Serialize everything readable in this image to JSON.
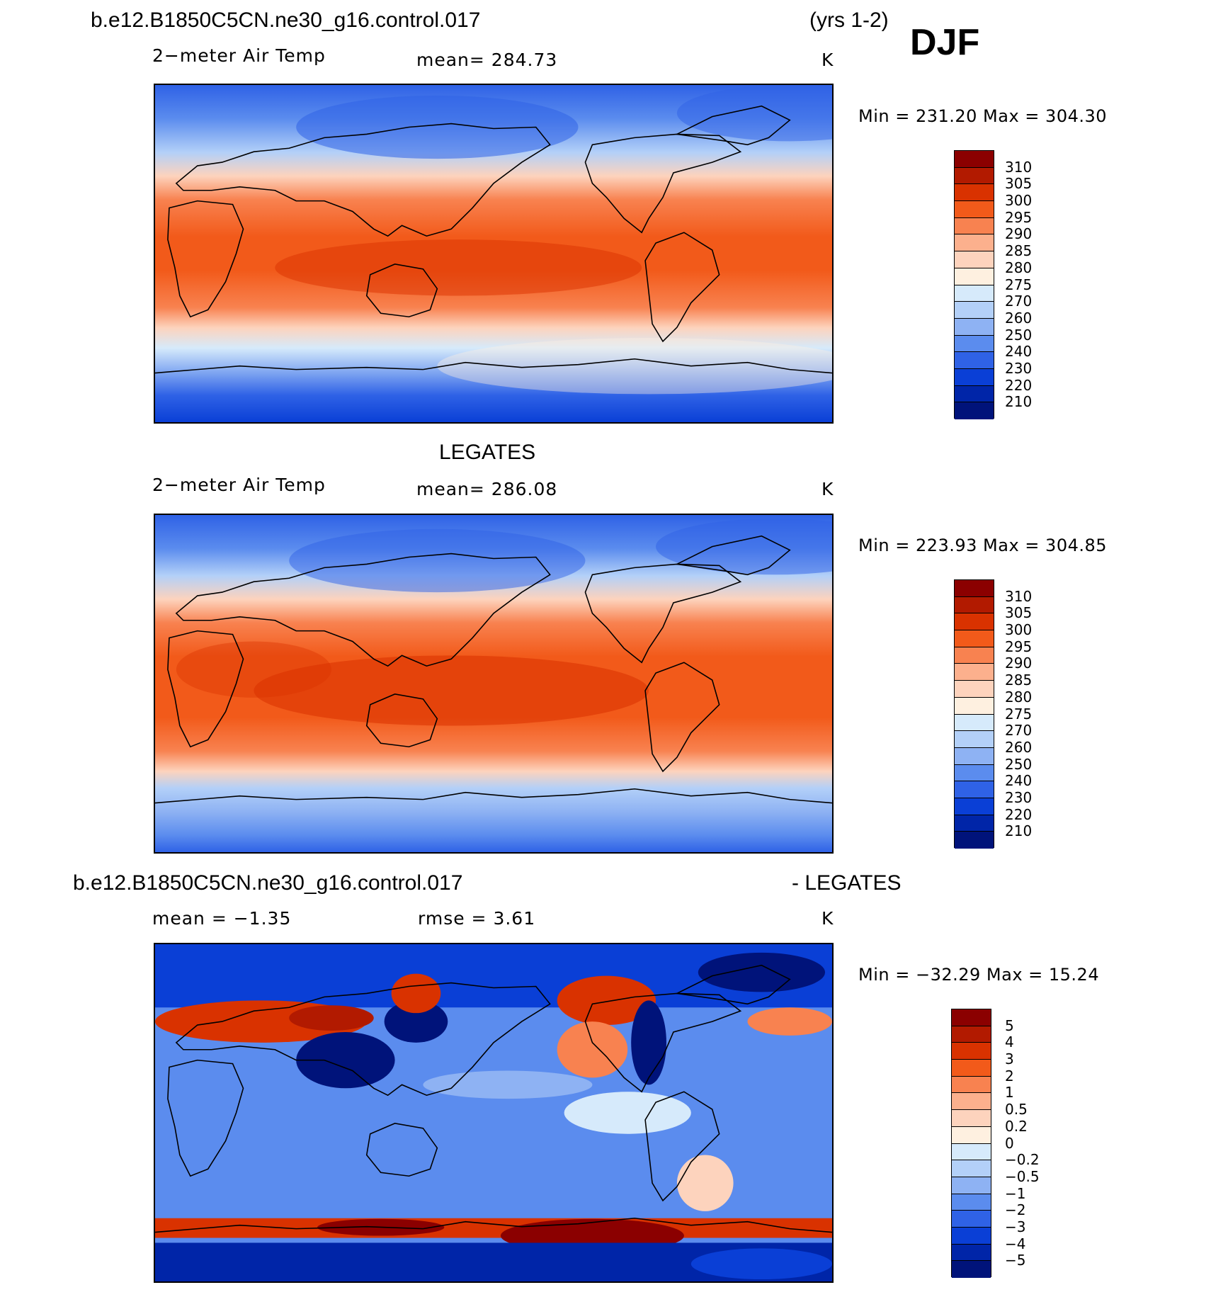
{
  "header": {
    "case_name": "b.e12.B1850C5CN.ne30_g16.control.017",
    "years": "(yrs 1-2)",
    "season": "DJF"
  },
  "panels": [
    {
      "id": "model",
      "variable": "2−meter Air Temp",
      "mean_text": "mean=  284.73",
      "units": "K",
      "minmax_text": "Min  =  231.20  Max  =  304.30",
      "colorbar": {
        "labels": [
          "310",
          "305",
          "300",
          "295",
          "290",
          "285",
          "280",
          "275",
          "270",
          "260",
          "250",
          "240",
          "230",
          "220",
          "210"
        ],
        "colors": [
          "#8b0000",
          "#b21a00",
          "#d93200",
          "#f25a1a",
          "#f88250",
          "#fcb08d",
          "#fdd3bd",
          "#fef0e0",
          "#d6eafb",
          "#b3d0f8",
          "#8eb2f3",
          "#5b8cee",
          "#2f62e6",
          "#0a3fd6",
          "#0025a8",
          "#00137a"
        ]
      }
    },
    {
      "id": "obs",
      "dataset": "LEGATES",
      "variable": "2−meter Air Temp",
      "mean_text": "mean=  286.08",
      "units": "K",
      "minmax_text": "Min  =  223.93  Max  =  304.85",
      "colorbar": {
        "labels": [
          "310",
          "305",
          "300",
          "295",
          "290",
          "285",
          "280",
          "275",
          "270",
          "260",
          "250",
          "240",
          "230",
          "220",
          "210"
        ],
        "colors": [
          "#8b0000",
          "#b21a00",
          "#d93200",
          "#f25a1a",
          "#f88250",
          "#fcb08d",
          "#fdd3bd",
          "#fef0e0",
          "#d6eafb",
          "#b3d0f8",
          "#8eb2f3",
          "#5b8cee",
          "#2f62e6",
          "#0a3fd6",
          "#0025a8",
          "#00137a"
        ]
      }
    },
    {
      "id": "diff",
      "case_name": "b.e12.B1850C5CN.ne30_g16.control.017",
      "minus_label": "- LEGATES",
      "mean_text": "mean  =    −1.35",
      "rmse_text": "rmse  =      3.61",
      "units": "K",
      "minmax_text": "Min  =  −32.29  Max  =    15.24",
      "colorbar": {
        "labels": [
          "5",
          "4",
          "3",
          "2",
          "1",
          "0.5",
          "0.2",
          "0",
          "−0.2",
          "−0.5",
          "−1",
          "−2",
          "−3",
          "−4",
          "−5"
        ],
        "colors": [
          "#8b0000",
          "#b21a00",
          "#d93200",
          "#f25a1a",
          "#f88250",
          "#fcb08d",
          "#fdd3bd",
          "#fef0e0",
          "#d6eafb",
          "#b3d0f8",
          "#8eb2f3",
          "#5b8cee",
          "#2f62e6",
          "#0a3fd6",
          "#0025a8",
          "#00137a"
        ]
      }
    }
  ]
}
